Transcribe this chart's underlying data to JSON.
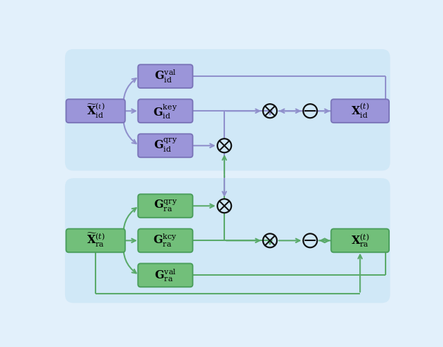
{
  "purple_fill": "#9b95d9",
  "purple_edge": "#7b75b9",
  "green_fill": "#72bf7a",
  "green_edge": "#4a9e5c",
  "purple_line": "#9090cc",
  "green_line": "#5aaa6a",
  "bg_outer": "#e2f0fb",
  "bg_panel": "#d0e8f7",
  "top_input": "$\\widetilde{\\mathbf{X}}_{\\mathrm{id}}^{(\\iota)}$",
  "top_g_val": "$\\mathbf{G}_{\\mathrm{id}}^{\\mathrm{val}}$",
  "top_g_key": "$\\mathbf{G}_{\\mathrm{id}}^{\\mathrm{key}}$",
  "top_g_qry": "$\\mathbf{G}_{\\mathrm{id}}^{\\mathrm{qry}}$",
  "top_output": "$\\mathbf{X}_{\\mathrm{id}}^{(t)}$",
  "bot_input": "$\\widetilde{\\mathbf{X}}_{\\mathrm{ra}}^{(t)}$",
  "bot_g_qry": "$\\mathbf{G}_{\\mathrm{ra}}^{\\mathrm{qry}}$",
  "bot_g_kcy": "$\\mathbf{G}_{\\mathrm{ra}}^{\\mathrm{kcy}}$",
  "bot_g_val": "$\\mathbf{G}_{\\mathrm{ra}}^{\\mathrm{val}}$",
  "bot_output": "$\\mathbf{X}_{\\mathrm{ra}}^{(t)}$"
}
